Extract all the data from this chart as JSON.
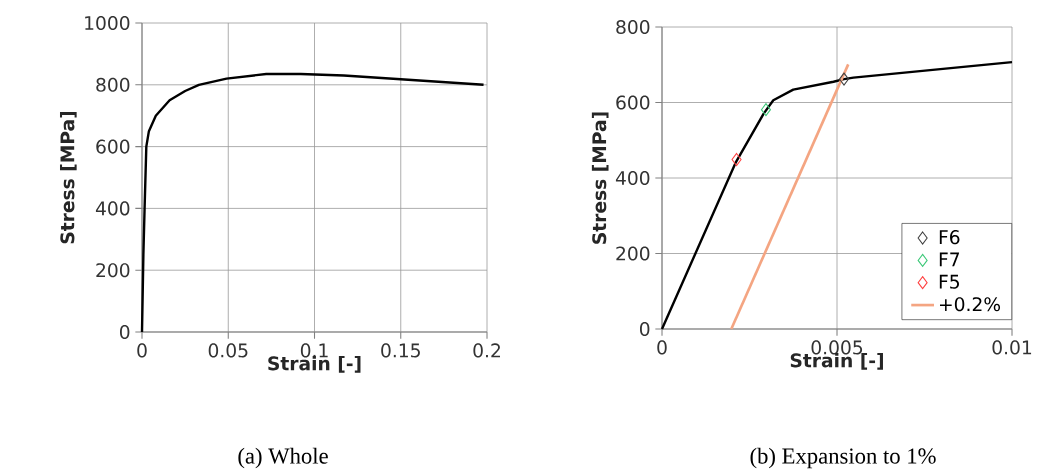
{
  "chart_data": [
    {
      "type": "line",
      "title": "(a) Whole",
      "xlabel": "Strain [-]",
      "ylabel": "Stress [MPa]",
      "xlim": [
        0,
        0.2
      ],
      "ylim": [
        0,
        1000
      ],
      "xticks": [
        0,
        0.05,
        0.1,
        0.15,
        0.2
      ],
      "yticks": [
        0,
        200,
        400,
        600,
        800,
        1000
      ],
      "grid": true,
      "legend": false,
      "series": [
        {
          "color": "#000000",
          "x": [
            0,
            0.0008,
            0.0015,
            0.002,
            0.0025,
            0.004,
            0.008,
            0.016,
            0.025,
            0.033,
            0.049,
            0.072,
            0.092,
            0.117,
            0.15,
            0.198
          ],
          "values": [
            0,
            250,
            400,
            500,
            600,
            650,
            700,
            750,
            780,
            800,
            820,
            835,
            835,
            830,
            818,
            800
          ]
        }
      ]
    },
    {
      "type": "line",
      "title": "(b) Expansion to 1%",
      "xlabel": "Strain [-]",
      "ylabel": "Stress [MPa]",
      "xlim": [
        0,
        0.01
      ],
      "ylim": [
        0,
        800
      ],
      "xticks": [
        0,
        0.005,
        0.01
      ],
      "yticks": [
        0,
        200,
        400,
        600,
        800
      ],
      "grid": true,
      "legend": "bottom right",
      "series": [
        {
          "color": "#000000",
          "x": [
            0,
            0.0021,
            0.0029,
            0.00318,
            0.00375,
            0.0049,
            0.0052,
            0.00547,
            0.01
          ],
          "values": [
            0,
            440,
            570,
            606,
            634,
            655,
            662,
            666,
            707
          ]
        },
        {
          "name": "F6",
          "type": "scatter",
          "marker": "diamond",
          "color": "#404040",
          "x": [
            0.0052
          ],
          "values": [
            662
          ]
        },
        {
          "name": "F7",
          "type": "scatter",
          "marker": "diamond",
          "color": "#3cc878",
          "x": [
            0.00297
          ],
          "values": [
            581
          ]
        },
        {
          "name": "F5",
          "type": "scatter",
          "marker": "diamond",
          "color": "#ff4040",
          "x": [
            0.00213
          ],
          "values": [
            449
          ]
        },
        {
          "name": "+0.2%",
          "color": "#f4a582",
          "x": [
            0.00198,
            0.00532
          ],
          "values": [
            0,
            701
          ]
        }
      ]
    }
  ]
}
